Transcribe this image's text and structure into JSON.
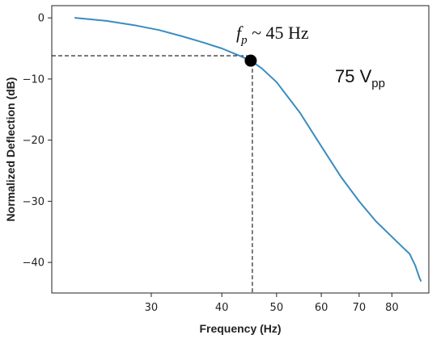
{
  "chart_data": {
    "type": "line",
    "title": "",
    "xlabel": "Frequency (Hz)",
    "ylabel": "Normalized Deflection (dB)",
    "x_scale": "log",
    "xlim": [
      20,
      93
    ],
    "ylim": [
      -45,
      2
    ],
    "x_ticks": [
      30,
      40,
      50,
      60,
      70,
      80
    ],
    "y_ticks": [
      0,
      -10,
      -20,
      -30,
      -40
    ],
    "y_tick_labels": [
      "0",
      "−10",
      "−20",
      "−30",
      "−40"
    ],
    "grid": false,
    "series": [
      {
        "color": "#3a8cc0",
        "x": [
          22,
          25,
          28,
          31,
          34,
          37,
          40,
          43,
          45,
          47,
          50,
          55,
          60,
          65,
          70,
          75,
          80,
          84,
          86,
          88,
          89.5,
          90
        ],
        "y": [
          0,
          -0.5,
          -1.2,
          -2.0,
          -3.0,
          -4.0,
          -5.0,
          -6.2,
          -7.0,
          -8.2,
          -10.5,
          -15.5,
          -21.0,
          -26.0,
          -30.0,
          -33.3,
          -35.8,
          -37.7,
          -38.6,
          -40.5,
          -42.5,
          -43.0
        ]
      }
    ],
    "markers": [
      {
        "x": 45,
        "y": -7.0,
        "color": "#000000"
      }
    ],
    "reference_lines": {
      "x": 45.3,
      "y": -6.2,
      "style": "dashed",
      "color": "#111111"
    },
    "annotations": {
      "corner_frequency": {
        "symbol": "f",
        "subscript": "p",
        "text": " ~ 45 Hz"
      },
      "voltage": {
        "value": "75 V",
        "subscript": "pp"
      }
    }
  }
}
